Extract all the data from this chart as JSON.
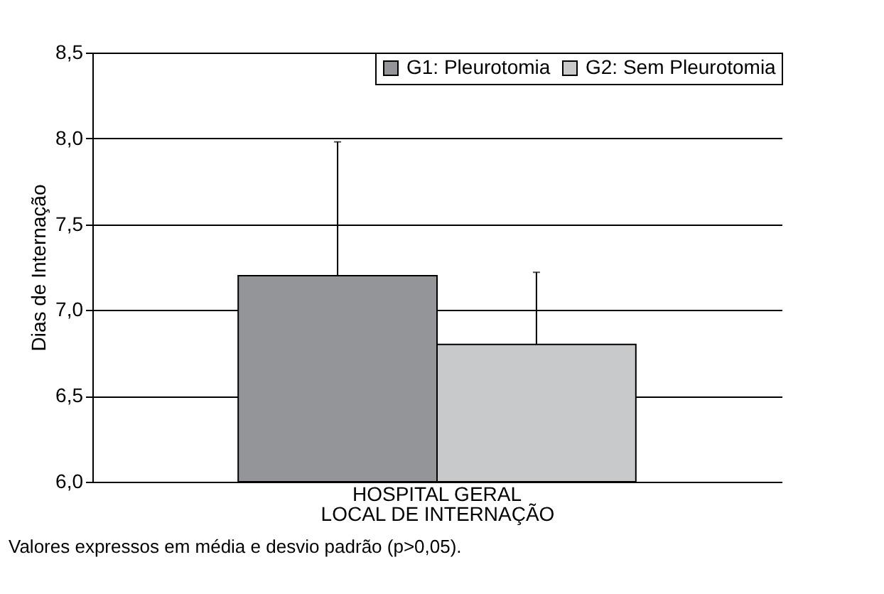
{
  "chart_data": {
    "type": "bar",
    "xlabel": "LOCAL DE INTERNAÇÃO",
    "ylabel": "Dias de Internação",
    "categories": [
      "HOSPITAL GERAL"
    ],
    "series": [
      {
        "name": "G1: Pleurotomia",
        "color": "#939598",
        "values": [
          7.2
        ],
        "errors": [
          [
            7.2,
            7.98
          ]
        ]
      },
      {
        "name": "G2: Sem Pleurotomia",
        "color": "#c8c9cb",
        "values": [
          6.8
        ],
        "errors": [
          [
            6.8,
            7.22
          ]
        ]
      }
    ],
    "ylim": [
      6,
      8.5
    ],
    "yticks": [
      {
        "value": 6,
        "label": "6,0"
      },
      {
        "value": 6.5,
        "label": "6,5"
      },
      {
        "value": 7,
        "label": "7,0"
      },
      {
        "value": 7.5,
        "label": "7,5"
      },
      {
        "value": 8,
        "label": "8,0"
      },
      {
        "value": 8.5,
        "label": "8,5"
      }
    ],
    "grid": "y",
    "legend": "top right",
    "annotations": [
      "Valores expressos em média e desvio padrão (p>0,05)."
    ]
  }
}
